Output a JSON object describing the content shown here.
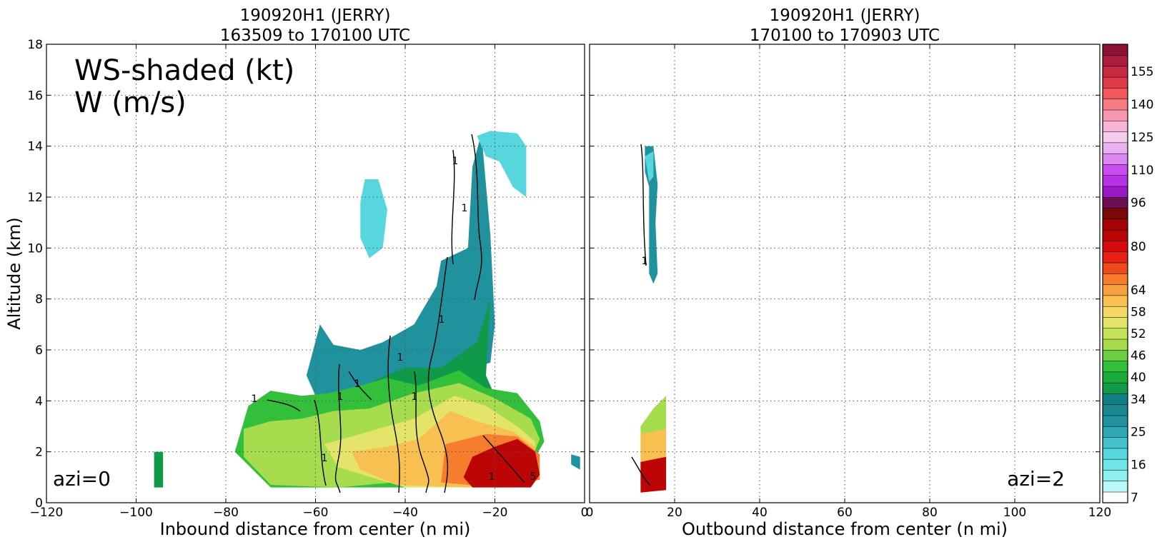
{
  "chart_data": [
    {
      "type": "heatmap",
      "title": [
        "190920H1 (JERRY)",
        "163509 to 170100 UTC"
      ],
      "xlabel": "Inbound distance from center (n mi)",
      "ylabel": "Altitude (km)",
      "xlim": [
        -120,
        0
      ],
      "ylim": [
        0,
        18
      ],
      "x_ticks": [
        "−120",
        "−100",
        "−80",
        "−60",
        "−40",
        "−20",
        "0"
      ],
      "y_ticks": [
        "0",
        "2",
        "4",
        "6",
        "8",
        "10",
        "12",
        "14",
        "16",
        "18"
      ],
      "grid": true,
      "annotations": {
        "fields_line1": "WS-shaded (kt)",
        "fields_line2": "W (m/s)",
        "azimuth": "azi=0"
      },
      "contour_labels": [
        "1",
        "1",
        "1",
        "1",
        "1",
        "1",
        "1",
        "1",
        "1",
        "1",
        "5"
      ],
      "regions": [
        {
          "level": 25,
          "poly": [
            [
              -59,
              7
            ],
            [
              -56,
              6.2
            ],
            [
              -50,
              6
            ],
            [
              -45,
              6.3
            ],
            [
              -38,
              7
            ],
            [
              -33,
              8.5
            ],
            [
              -32,
              9.5
            ],
            [
              -26,
              10
            ],
            [
              -25,
              13.2
            ],
            [
              -23,
              14.5
            ],
            [
              -21,
              10.5
            ],
            [
              -20,
              7
            ],
            [
              -21,
              5.5
            ],
            [
              -30,
              5
            ],
            [
              -40,
              4.6
            ],
            [
              -52,
              4.2
            ],
            [
              -60,
              4.2
            ],
            [
              -62,
              5
            ]
          ]
        },
        {
          "level": 16,
          "poly": [
            [
              -24,
              14.4
            ],
            [
              -21,
              14.6
            ],
            [
              -15,
              14.5
            ],
            [
              -13,
              14
            ],
            [
              -13,
              12
            ],
            [
              -16,
              12.4
            ],
            [
              -19,
              13.4
            ],
            [
              -22,
              13.6
            ]
          ]
        },
        {
          "level": 16,
          "poly": [
            [
              -49,
              12.7
            ],
            [
              -46,
              12.7
            ],
            [
              -44,
              11.5
            ],
            [
              -45,
              10
            ],
            [
              -48,
              9.6
            ],
            [
              -50,
              10.4
            ],
            [
              -50,
              11.8
            ]
          ]
        },
        {
          "level": 34,
          "poly": [
            [
              -47,
              4.8
            ],
            [
              -40,
              5.3
            ],
            [
              -32,
              5.3
            ],
            [
              -24,
              6.3
            ],
            [
              -21,
              8
            ],
            [
              -22,
              5
            ],
            [
              -20,
              4.2
            ],
            [
              -30,
              4.3
            ],
            [
              -40,
              4.2
            ],
            [
              -46,
              4.3
            ]
          ]
        },
        {
          "level": 40,
          "poly": [
            [
              -75,
              3.8
            ],
            [
              -70,
              4.4
            ],
            [
              -63,
              4.2
            ],
            [
              -57,
              4.3
            ],
            [
              -50,
              4.6
            ],
            [
              -44,
              4.9
            ],
            [
              -37,
              4.6
            ],
            [
              -28,
              5.2
            ],
            [
              -22,
              4.5
            ],
            [
              -15,
              4.3
            ],
            [
              -10,
              3.2
            ],
            [
              -9,
              2.4
            ],
            [
              -11,
              1.8
            ],
            [
              -20,
              1.5
            ],
            [
              -40,
              0.6
            ],
            [
              -70,
              0.6
            ],
            [
              -78,
              2
            ]
          ]
        },
        {
          "level": 46,
          "poly": [
            [
              -76,
              2.9
            ],
            [
              -70,
              3.2
            ],
            [
              -63,
              3.3
            ],
            [
              -56,
              3.6
            ],
            [
              -48,
              3.7
            ],
            [
              -38,
              4.3
            ],
            [
              -28,
              4.7
            ],
            [
              -20,
              4.1
            ],
            [
              -12,
              3.3
            ],
            [
              -10,
              2.5
            ],
            [
              -12,
              1.6
            ],
            [
              -30,
              1
            ],
            [
              -55,
              0.6
            ],
            [
              -70,
              0.7
            ],
            [
              -76,
              1.8
            ]
          ]
        },
        {
          "level": 52,
          "poly": [
            [
              -58,
              2.3
            ],
            [
              -48,
              2.8
            ],
            [
              -38,
              3.3
            ],
            [
              -29,
              4.2
            ],
            [
              -22,
              3.8
            ],
            [
              -15,
              3
            ],
            [
              -11,
              2.4
            ],
            [
              -11,
              1.4
            ],
            [
              -25,
              0.6
            ],
            [
              -40,
              0.6
            ],
            [
              -55,
              1.4
            ]
          ]
        },
        {
          "level": 58,
          "poly": [
            [
              -52,
              2
            ],
            [
              -44,
              2.2
            ],
            [
              -37,
              2.5
            ],
            [
              -30,
              3.6
            ],
            [
              -24,
              3.2
            ],
            [
              -16,
              2.8
            ],
            [
              -11,
              2.2
            ],
            [
              -11,
              1
            ],
            [
              -26,
              0.6
            ],
            [
              -42,
              0.7
            ],
            [
              -50,
              1.3
            ]
          ]
        },
        {
          "level": 64,
          "poly": [
            [
              -31,
              2.3
            ],
            [
              -22,
              2.7
            ],
            [
              -15,
              2.6
            ],
            [
              -10,
              1.9
            ],
            [
              -10,
              0.9
            ],
            [
              -20,
              0.6
            ],
            [
              -32,
              0.8
            ]
          ]
        },
        {
          "level": 80,
          "poly": [
            [
              -25,
              1.8
            ],
            [
              -20,
              2.2
            ],
            [
              -15,
              2.5
            ],
            [
              -11,
              2
            ],
            [
              -10,
              1.1
            ],
            [
              -12,
              0.6
            ],
            [
              -25,
              0.6
            ],
            [
              -27,
              1
            ]
          ]
        },
        {
          "level": 34,
          "poly": [
            [
              -96,
              2
            ],
            [
              -94,
              2
            ],
            [
              -94,
              0.6
            ],
            [
              -96,
              0.6
            ]
          ]
        },
        {
          "level": 25,
          "poly": [
            [
              -3,
              1.9
            ],
            [
              -1,
              1.8
            ],
            [
              -1,
              1.3
            ],
            [
              -3,
              1.5
            ]
          ]
        }
      ]
    },
    {
      "type": "heatmap",
      "title": [
        "190920H1 (JERRY)",
        "170100 to 170903 UTC"
      ],
      "xlabel": "Outbound distance from center (n mi)",
      "xlim": [
        0,
        120
      ],
      "ylim": [
        0,
        18
      ],
      "x_ticks": [
        "0",
        "20",
        "40",
        "60",
        "80",
        "100",
        "120"
      ],
      "grid": true,
      "annotations": {
        "azimuth": "azi=2"
      },
      "contour_labels": [
        "1"
      ],
      "regions": [
        {
          "level": 25,
          "poly": [
            [
              13,
              14
            ],
            [
              15,
              14
            ],
            [
              16,
              12.5
            ],
            [
              15.5,
              11
            ],
            [
              16,
              9
            ],
            [
              15,
              8.6
            ],
            [
              14,
              9
            ],
            [
              14,
              12.4
            ],
            [
              13,
              13
            ]
          ]
        },
        {
          "level": 16,
          "poly": [
            [
              13,
              13.6
            ],
            [
              15,
              13.8
            ],
            [
              15,
              12.8
            ],
            [
              14,
              12.6
            ]
          ]
        },
        {
          "level": 46,
          "poly": [
            [
              12,
              3
            ],
            [
              15,
              3.7
            ],
            [
              18,
              4.2
            ],
            [
              18,
              0.6
            ],
            [
              12,
              0.6
            ]
          ]
        },
        {
          "level": 58,
          "poly": [
            [
              12,
              2.7
            ],
            [
              18,
              2.9
            ],
            [
              18,
              1.6
            ],
            [
              12,
              1.5
            ]
          ]
        },
        {
          "level": 80,
          "poly": [
            [
              12,
              1.6
            ],
            [
              18,
              1.8
            ],
            [
              18,
              0.5
            ],
            [
              12,
              0.4
            ]
          ]
        }
      ]
    }
  ],
  "colorbar": {
    "labels": [
      "7",
      "16",
      "25",
      "34",
      "40",
      "46",
      "52",
      "58",
      "64",
      "80",
      "96",
      "110",
      "125",
      "140",
      "155"
    ],
    "levels": [
      7,
      10,
      13,
      16,
      19,
      22,
      25,
      28,
      31,
      34,
      37,
      40,
      43,
      46,
      49,
      52,
      55,
      58,
      61,
      64,
      68,
      72,
      76,
      80,
      84,
      88,
      92,
      96,
      100,
      104,
      110,
      115,
      120,
      125,
      130,
      135,
      140,
      145,
      150,
      155
    ],
    "colors": [
      "#ffffff",
      "#b8f8f6",
      "#8ef0f0",
      "#6ee6ea",
      "#58d6de",
      "#42c0cc",
      "#2fa8b6",
      "#20929e",
      "#188891",
      "#127f86",
      "#0e9a48",
      "#18ad3a",
      "#34bf3a",
      "#6ccc42",
      "#a6dc4e",
      "#c4e25a",
      "#e4e46a",
      "#f4d868",
      "#f8c050",
      "#f8a040",
      "#f67c2e",
      "#f04a1c",
      "#e82018",
      "#d60c0c",
      "#bc0606",
      "#a30404",
      "#7a0808",
      "#6c0e54",
      "#9c18c6",
      "#b632e4",
      "#c84cf0",
      "#dc88f0",
      "#eab0f0",
      "#f4ccf0",
      "#f8b6d6",
      "#f898b0",
      "#f67c86",
      "#f0585c",
      "#e03a4a",
      "#c82a40",
      "#ac1c3c",
      "#8e1236"
    ]
  }
}
